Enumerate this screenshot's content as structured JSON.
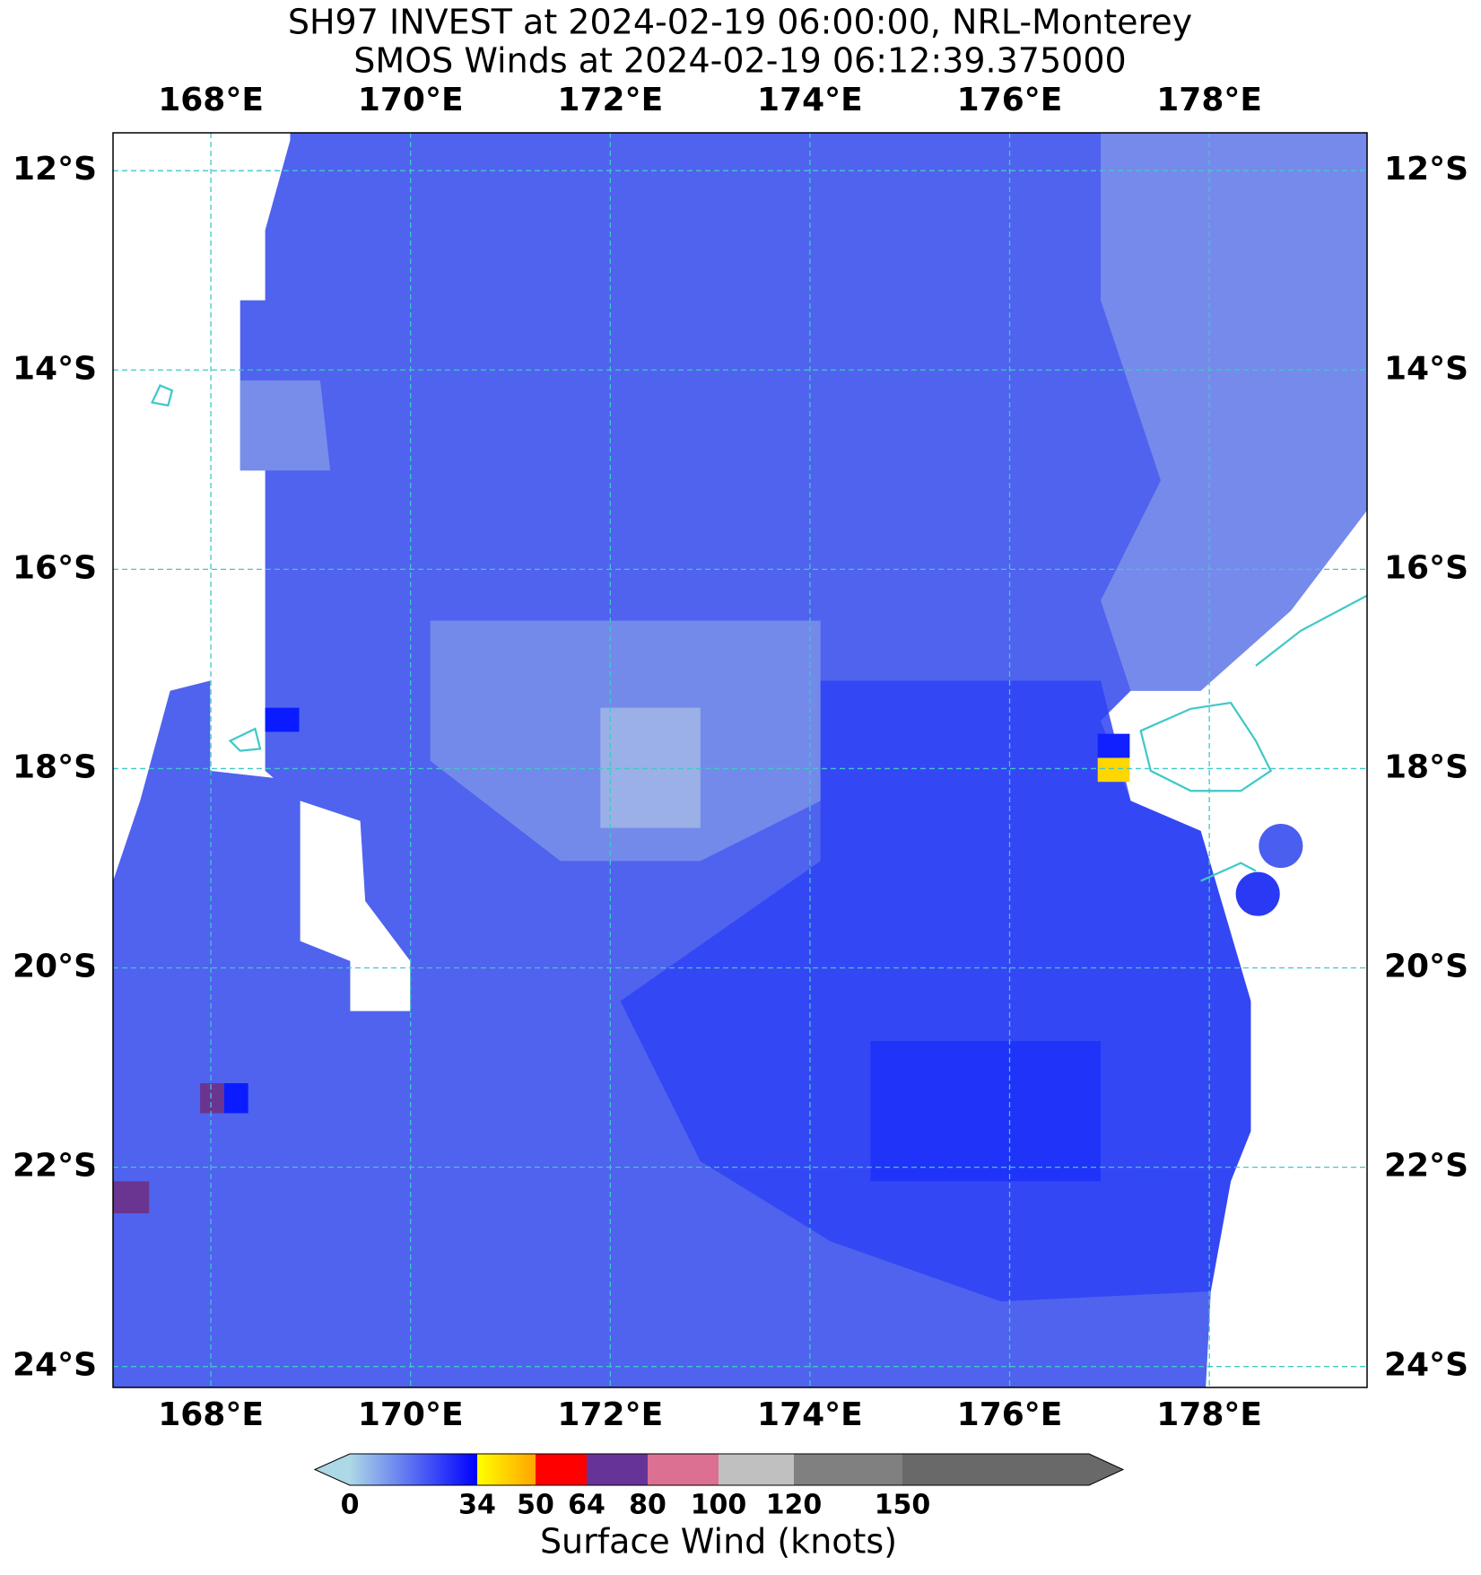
{
  "title": [
    "SH97 INVEST at 2024-02-19 06:00:00, NRL-Monterey",
    "SMOS Winds at 2024-02-19 06:12:39.375000"
  ],
  "map": {
    "xlim": [
      167.02,
      179.58
    ],
    "ylim": [
      -24.21,
      -11.62
    ],
    "lon_ticks": [
      {
        "value": 168,
        "label": "168°E"
      },
      {
        "value": 170,
        "label": "170°E"
      },
      {
        "value": 172,
        "label": "172°E"
      },
      {
        "value": 174,
        "label": "174°E"
      },
      {
        "value": 176,
        "label": "176°E"
      },
      {
        "value": 178,
        "label": "178°E"
      }
    ],
    "lat_ticks": [
      {
        "value": -12,
        "label": "12°S"
      },
      {
        "value": -14,
        "label": "14°S"
      },
      {
        "value": -16,
        "label": "16°S"
      },
      {
        "value": -18,
        "label": "18°S"
      },
      {
        "value": -20,
        "label": "20°S"
      },
      {
        "value": -22,
        "label": "22°S"
      },
      {
        "value": -24,
        "label": "24°S"
      }
    ],
    "grid_color": "#40c8c8"
  },
  "colorbar": {
    "ticks": [
      0,
      34,
      50,
      64,
      80,
      100,
      120,
      150
    ],
    "colors": [
      [
        "#add8e6",
        "#0000ff"
      ],
      [
        "#ffff00",
        "#ffa500"
      ],
      [
        "#ff0000"
      ],
      [
        "#663399"
      ],
      [
        "#db7093"
      ],
      [
        "#c0c0c0"
      ],
      [
        "#808080"
      ]
    ],
    "extend_colors": [
      "#add8e6",
      "#696969"
    ],
    "label": "Surface Wind (knots)"
  }
}
